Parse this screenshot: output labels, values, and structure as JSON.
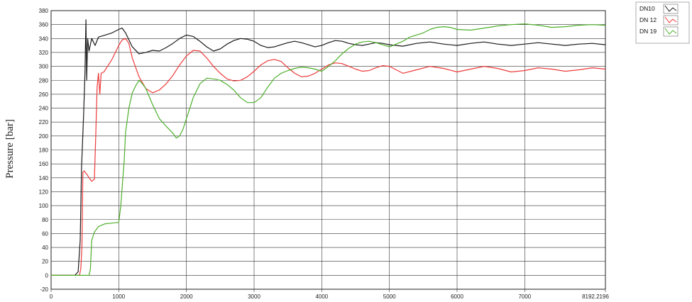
{
  "chart_data": {
    "type": "line",
    "title": "",
    "xlabel": "",
    "ylabel": "Pressure [bar]",
    "xlim": [
      0,
      8192.2196
    ],
    "ylim": [
      -20,
      380
    ],
    "x_ticks": [
      0,
      1000,
      2000,
      3000,
      4000,
      5000,
      6000,
      7000,
      8192.2196
    ],
    "x_tick_labels": [
      "0",
      "1000",
      "2000",
      "3000",
      "4000",
      "5000",
      "6000",
      "7000",
      "8192.2196"
    ],
    "y_ticks": [
      -20,
      0,
      20,
      40,
      60,
      80,
      100,
      120,
      140,
      160,
      180,
      200,
      220,
      240,
      260,
      280,
      300,
      320,
      340,
      360,
      380
    ],
    "y_tick_labels": [
      "-20",
      "0",
      "20",
      "40",
      "60",
      "80",
      "100",
      "120",
      "140",
      "160",
      "180",
      "200",
      "220",
      "240",
      "260",
      "280",
      "300",
      "320",
      "340",
      "360",
      "380"
    ],
    "grid": true,
    "legend_position": "top-right, outside plot",
    "series": [
      {
        "name": "DN10",
        "color": "#1a1a1a",
        "x": [
          0,
          350,
          400,
          430,
          450,
          480,
          500,
          515,
          525,
          540,
          560,
          600,
          650,
          700,
          800,
          900,
          1000,
          1050,
          1100,
          1200,
          1300,
          1400,
          1500,
          1600,
          1700,
          1800,
          1900,
          2000,
          2100,
          2200,
          2300,
          2400,
          2500,
          2600,
          2700,
          2800,
          2900,
          3000,
          3100,
          3200,
          3300,
          3400,
          3500,
          3600,
          3700,
          3800,
          3900,
          4000,
          4100,
          4200,
          4300,
          4400,
          4500,
          4600,
          4700,
          4800,
          4900,
          5000,
          5200,
          5400,
          5600,
          5800,
          6000,
          6200,
          6400,
          6600,
          6800,
          7000,
          7200,
          7400,
          7600,
          7800,
          8000,
          8192
        ],
        "y": [
          0,
          0,
          5,
          50,
          155,
          230,
          290,
          367,
          280,
          340,
          322,
          340,
          330,
          342,
          345,
          348,
          353,
          355,
          348,
          328,
          318,
          320,
          323,
          322,
          327,
          333,
          340,
          345,
          343,
          336,
          328,
          322,
          325,
          332,
          337,
          340,
          339,
          336,
          330,
          327,
          328,
          331,
          334,
          336,
          334,
          331,
          328,
          330,
          334,
          337,
          336,
          333,
          331,
          330,
          332,
          334,
          333,
          331,
          329,
          333,
          335,
          332,
          330,
          333,
          335,
          332,
          330,
          332,
          334,
          332,
          330,
          332,
          333,
          331
        ]
      },
      {
        "name": "DN 12",
        "color": "#ee3a3a",
        "x": [
          0,
          420,
          440,
          455,
          470,
          490,
          510,
          530,
          560,
          600,
          640,
          660,
          680,
          700,
          720,
          740,
          780,
          820,
          900,
          1000,
          1050,
          1100,
          1150,
          1200,
          1300,
          1400,
          1500,
          1600,
          1700,
          1800,
          1900,
          2000,
          2100,
          2200,
          2300,
          2400,
          2500,
          2600,
          2700,
          2800,
          2900,
          3000,
          3100,
          3200,
          3300,
          3400,
          3500,
          3600,
          3700,
          3800,
          3900,
          4000,
          4100,
          4200,
          4300,
          4400,
          4500,
          4600,
          4700,
          4800,
          4900,
          5000,
          5200,
          5400,
          5600,
          5800,
          6000,
          6200,
          6400,
          6600,
          6800,
          7000,
          7200,
          7400,
          7600,
          7800,
          8000,
          8192
        ],
        "y": [
          0,
          0,
          10,
          40,
          148,
          150,
          147,
          145,
          140,
          135,
          138,
          200,
          270,
          290,
          260,
          290,
          292,
          298,
          310,
          330,
          338,
          340,
          333,
          312,
          285,
          268,
          262,
          266,
          275,
          287,
          302,
          315,
          323,
          322,
          312,
          300,
          290,
          282,
          279,
          280,
          285,
          293,
          302,
          308,
          310,
          307,
          298,
          290,
          285,
          286,
          290,
          296,
          302,
          305,
          304,
          300,
          296,
          293,
          294,
          298,
          301,
          300,
          290,
          295,
          300,
          297,
          292,
          296,
          300,
          297,
          292,
          294,
          298,
          296,
          293,
          295,
          298,
          296
        ]
      },
      {
        "name": "DN 19",
        "color": "#4caf2a",
        "x": [
          0,
          560,
          580,
          600,
          640,
          700,
          800,
          900,
          1000,
          1030,
          1080,
          1100,
          1150,
          1200,
          1250,
          1300,
          1350,
          1400,
          1500,
          1600,
          1700,
          1800,
          1850,
          1900,
          1950,
          2000,
          2100,
          2200,
          2300,
          2400,
          2500,
          2600,
          2700,
          2800,
          2900,
          3000,
          3100,
          3200,
          3300,
          3400,
          3500,
          3600,
          3700,
          3800,
          3900,
          4000,
          4100,
          4200,
          4300,
          4400,
          4500,
          4600,
          4700,
          4800,
          4900,
          5000,
          5100,
          5200,
          5300,
          5400,
          5500,
          5600,
          5700,
          5800,
          5900,
          6000,
          6200,
          6400,
          6600,
          6800,
          7000,
          7200,
          7400,
          7600,
          7800,
          8000,
          8192
        ],
        "y": [
          0,
          0,
          8,
          50,
          62,
          70,
          74,
          75,
          76,
          100,
          165,
          205,
          240,
          262,
          272,
          280,
          275,
          268,
          245,
          225,
          214,
          204,
          197,
          200,
          210,
          225,
          255,
          275,
          283,
          282,
          280,
          274,
          266,
          255,
          248,
          248,
          255,
          270,
          283,
          290,
          294,
          297,
          299,
          298,
          296,
          293,
          300,
          308,
          318,
          326,
          332,
          335,
          336,
          334,
          331,
          328,
          332,
          336,
          342,
          345,
          348,
          353,
          356,
          357,
          356,
          353,
          352,
          355,
          358,
          360,
          361,
          359,
          356,
          357,
          359,
          360,
          359
        ]
      }
    ]
  }
}
